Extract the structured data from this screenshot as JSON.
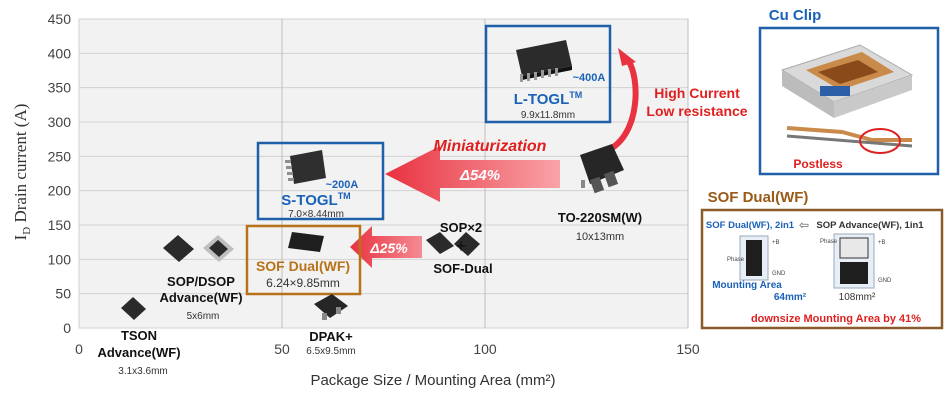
{
  "chart_data": {
    "type": "scatter",
    "xlabel": "Package Size / Mounting Area (mm²)",
    "ylabel": "ID Drain current (A)",
    "ylabel_main": "I",
    "ylabel_sub": "D",
    "ylabel_rest": " Drain current (A)",
    "xlim": [
      0,
      150
    ],
    "ylim": [
      0,
      450
    ],
    "x_ticks": [
      0,
      50,
      100,
      150
    ],
    "y_ticks": [
      0,
      50,
      100,
      150,
      200,
      250,
      300,
      350,
      400,
      450
    ],
    "grid": true,
    "points": [
      {
        "name": "TSON Advance(WF)",
        "size": "3.1x3.6mm",
        "x": 11.2,
        "y": 30
      },
      {
        "name": "SOP/DSOP Advance(WF)",
        "size": "5x6mm",
        "x": 30,
        "y": 115
      },
      {
        "name": "SOF Dual(WF)",
        "size": "6.24×9.85mm",
        "x": 61.5,
        "y": 130
      },
      {
        "name": "DPAK+",
        "size": "6.5x9.5mm",
        "x": 61.8,
        "y": 30
      },
      {
        "name": "SOP×2 / SOF-Dual",
        "size": "",
        "x": 95,
        "y": 130
      },
      {
        "name": "S-TOGL",
        "size": "7.0×8.44mm",
        "x": 59,
        "y": 220
      },
      {
        "name": "TO-220SM(W)",
        "size": "10x13mm",
        "x": 130,
        "y": 250
      },
      {
        "name": "L-TOGL",
        "size": "9.9x11.8mm",
        "x": 117,
        "y": 400
      }
    ]
  },
  "labels": {
    "tson_name1": "TSON",
    "tson_name2": "Advance(WF)",
    "tson_size": "3.1x3.6mm",
    "sop_name1": "SOP/DSOP",
    "sop_name2": "Advance(WF)",
    "sop_size": "5x6mm",
    "sof_name": "SOF Dual(WF)",
    "sof_size": "6.24×9.85mm",
    "dpak_name": "DPAK+",
    "dpak_size": "6.5x9.5mm",
    "sopx2": "SOP×2",
    "plus": "+",
    "sofdual": "SOF-Dual",
    "stogl_current": "~200A",
    "stogl_name": "S-TOGL",
    "stogl_tm": "TM",
    "stogl_size": "7.0×8.44mm",
    "to220_name": "TO-220SM(W)",
    "to220_size": "10x13mm",
    "ltogl_current": "~400A",
    "ltogl_name": "L-TOGL",
    "ltogl_tm": "TM",
    "ltogl_size": "9.9x11.8mm",
    "miniaturization": "Miniaturization",
    "delta54": "Δ54%",
    "delta25": "Δ25%",
    "high_current1": "High Current",
    "high_current2": "Low resistance"
  },
  "cu_clip": {
    "title": "Cu Clip",
    "postless": "Postless"
  },
  "sof_panel": {
    "title": "SOF Dual(WF)",
    "left_title": "SOF Dual(WF), 2in1",
    "arrow": "⇦",
    "right_title": "SOP Advance(WF), 1in1",
    "phase1": "Phase",
    "phase2": "Phase",
    "b1": "+B",
    "b2": "+B",
    "gnd1": "GND",
    "gnd2": "GND",
    "mounting_area": "Mounting Area",
    "area_left": "64mm²",
    "area_right": "108mm²",
    "downsize": "downsize Mounting Area by 41%"
  },
  "colors": {
    "plot_bg": "#f2f2f2",
    "grid": "#cfcfcf",
    "blue_box": "#1f5fa8",
    "orange_box": "#b87318",
    "red_arrow": "#ee3b4a",
    "red_text": "#e02020",
    "blue_text": "#1a62b8",
    "brown_text": "#9a5a18"
  }
}
